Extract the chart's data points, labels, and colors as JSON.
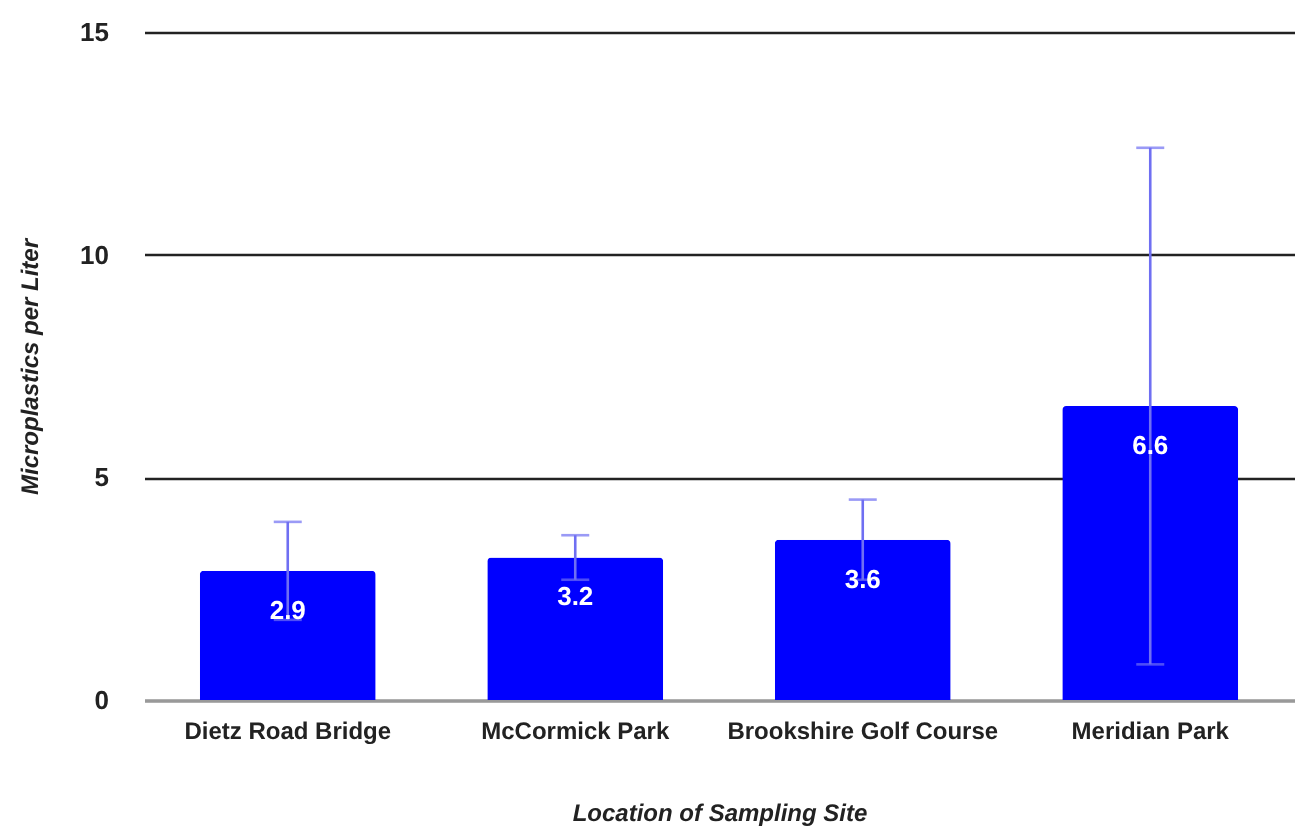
{
  "chart_data": {
    "type": "bar",
    "xlabel": "Location of Sampling Site",
    "ylabel": "Microplastics per Liter",
    "categories": [
      "Dietz Road Bridge",
      "McCormick Park",
      "Brookshire Golf Course",
      "Meridian Park"
    ],
    "values": [
      2.9,
      3.2,
      3.6,
      6.6
    ],
    "color": "#0000ff",
    "errors": [
      [
        1.8,
        4.0
      ],
      [
        2.7,
        3.7
      ],
      [
        2.7,
        4.5
      ],
      [
        0.8,
        12.4
      ]
    ],
    "data_labels": true,
    "ylim": [
      0,
      15
    ],
    "yticks": [
      0,
      5,
      10,
      15
    ],
    "grid": "y"
  }
}
